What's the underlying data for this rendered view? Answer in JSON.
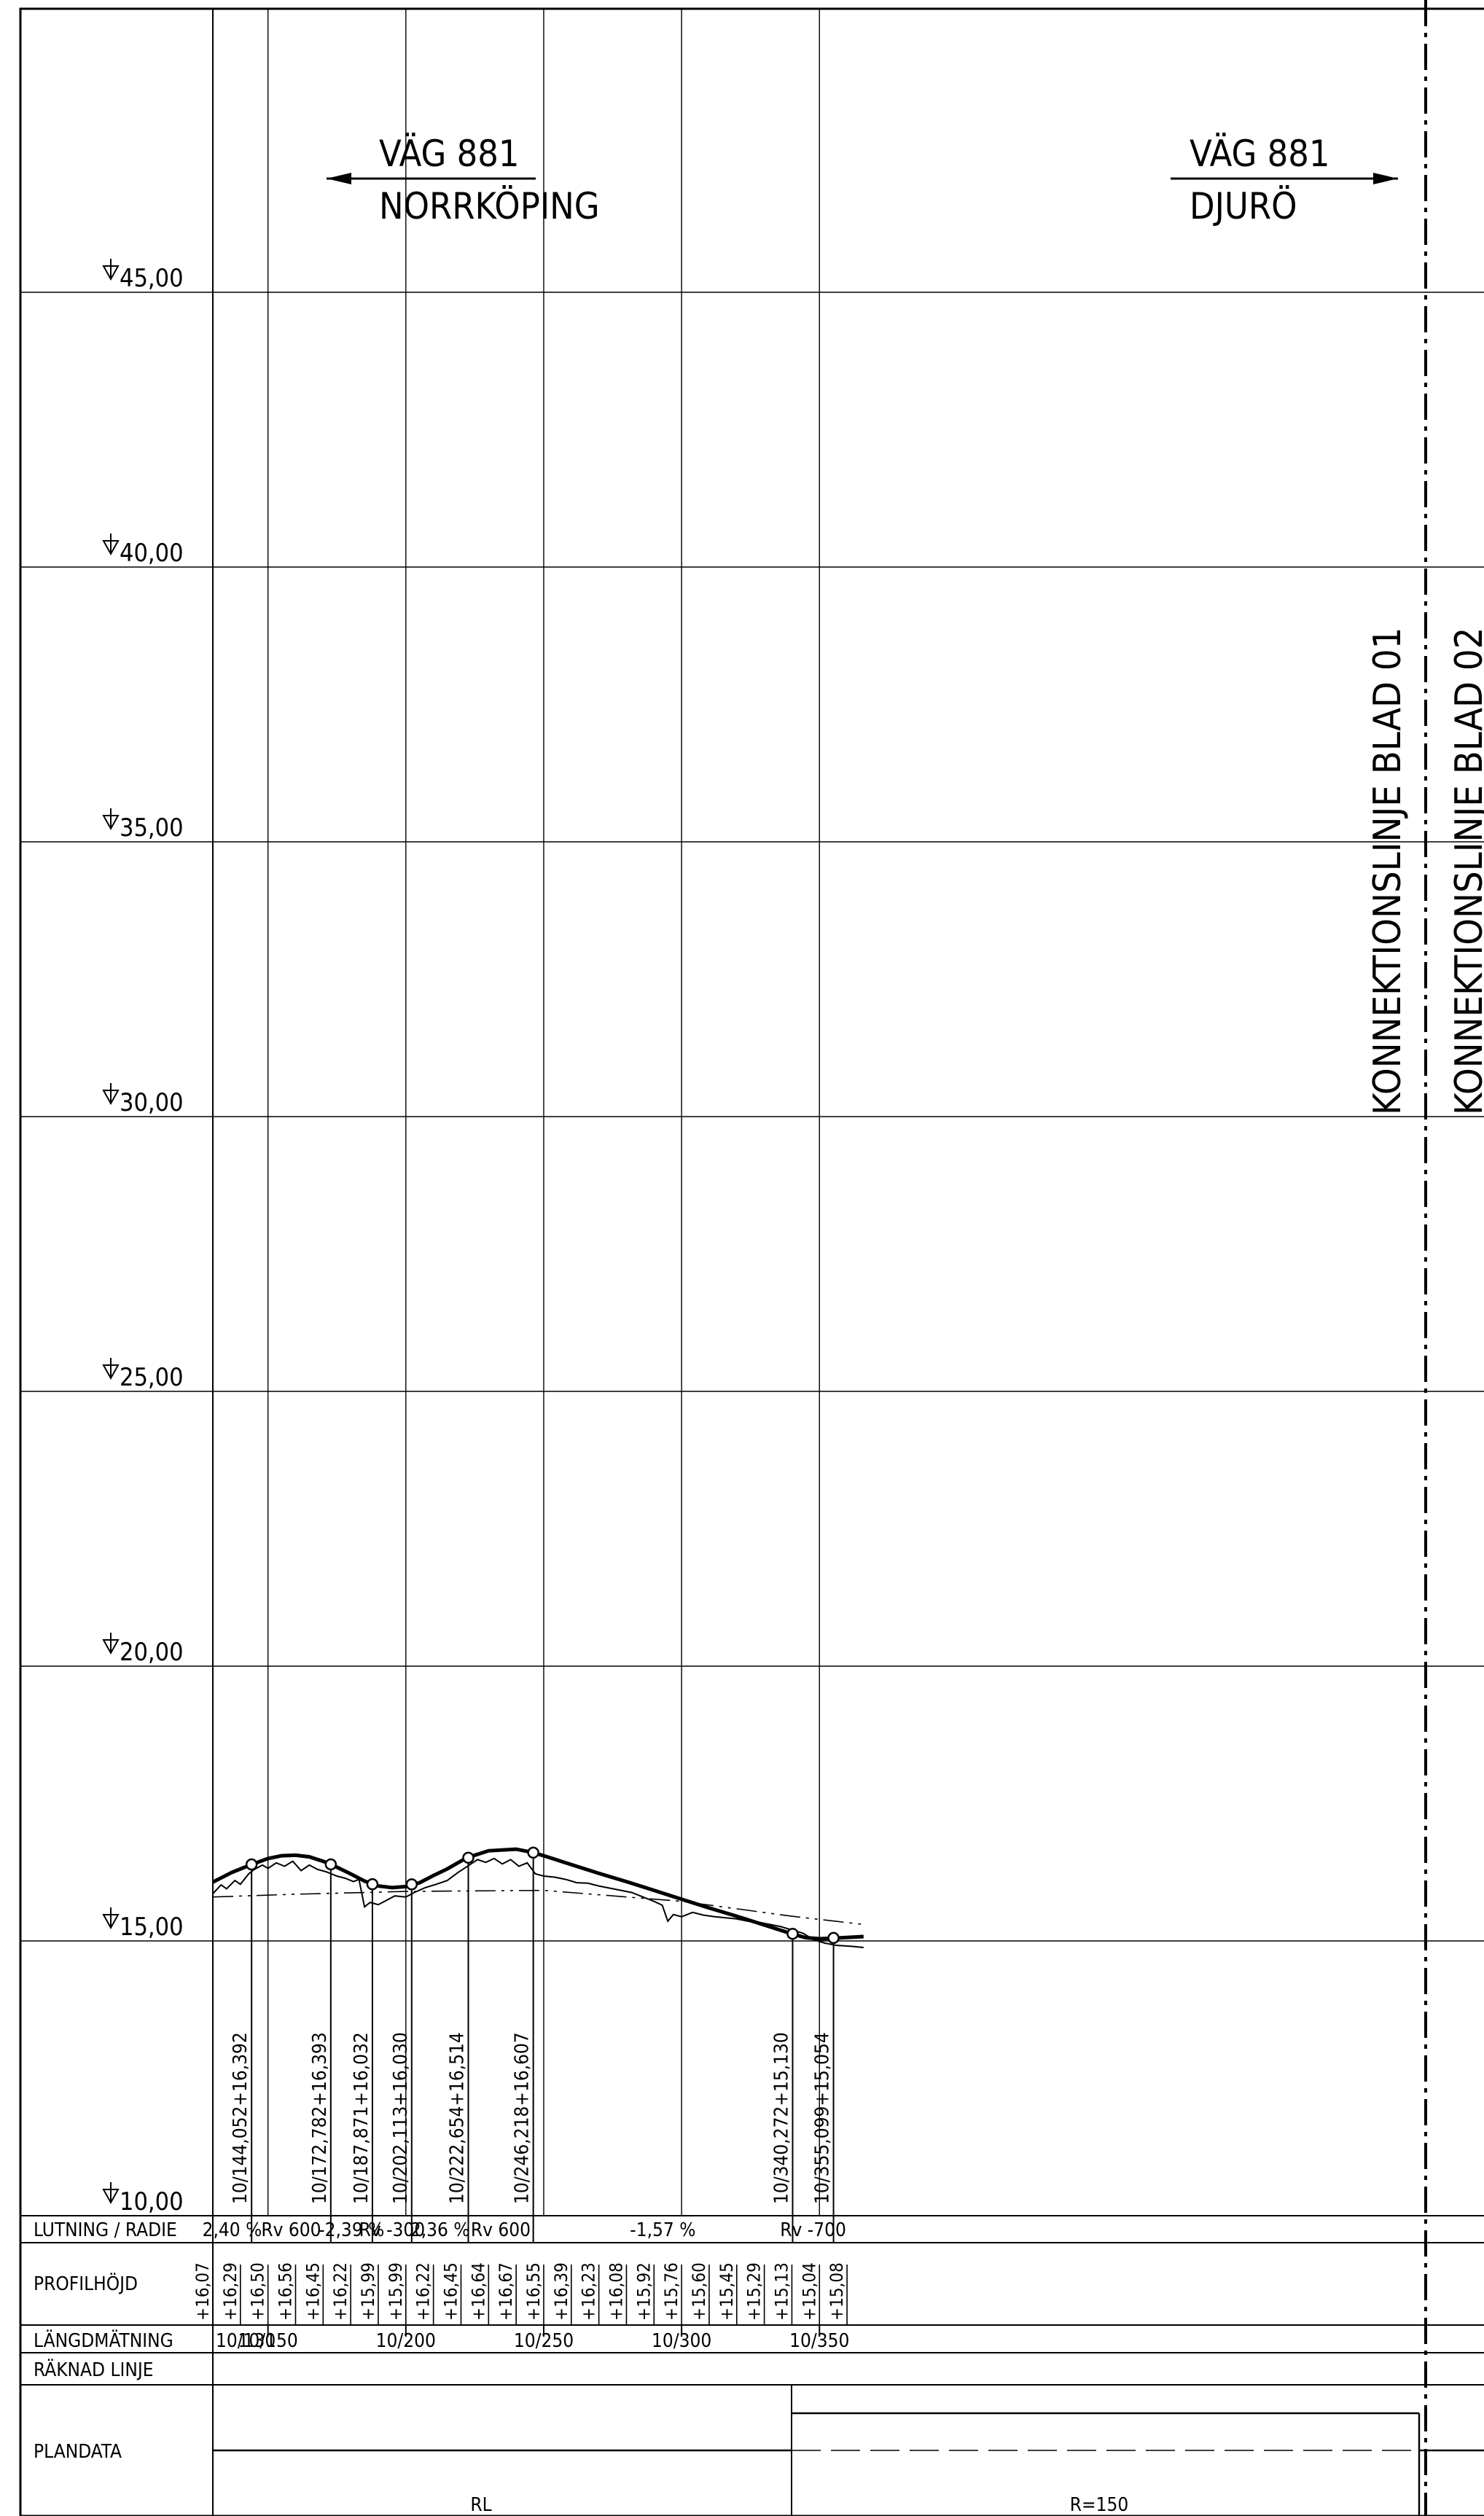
{
  "drawing": {
    "elevation_labels": [
      "45,00",
      "40,00",
      "35,00",
      "30,00",
      "25,00",
      "20,00",
      "15,00",
      "10,00"
    ],
    "direction_labels": [
      {
        "road": "VÄG 881",
        "destination": "NORRKÖPING",
        "arrow": "left"
      },
      {
        "road": "VÄG 881",
        "destination": "DJURÖ",
        "arrow": "right"
      }
    ],
    "connection_lines": [
      "KONNEKTIONSLINJE BLAD 01",
      "KONNEKTIONSLINJE BLAD 02"
    ],
    "vertical_point_labels": [
      "10/144,052+16,392",
      "10/172,782+16,393",
      "10/187,871+16,032",
      "10/202,113+16,030",
      "10/222,654+16,514",
      "10/246,218+16,607",
      "10/340,272+15,130",
      "10/355,099+15,054"
    ],
    "bands": {
      "lutning_radie": {
        "label": "LUTNING / RADIE",
        "values": [
          "2,40 %",
          "Rv 600",
          "-2,39 %",
          "Rv -300",
          "2,36 %",
          "Rv 600",
          "-1,57 %",
          "Rv -700"
        ]
      },
      "profilhojd": {
        "label": "PROFILHÖJD",
        "values": [
          "+16,07",
          "+16,29",
          "+16,50",
          "+16,56",
          "+16,45",
          "+16,22",
          "+15,99",
          "+15,99",
          "+16,22",
          "+16,45",
          "+16,64",
          "+16,67",
          "+16,55",
          "+16,39",
          "+16,23",
          "+16,08",
          "+15,92",
          "+15,76",
          "+15,60",
          "+15,45",
          "+15,29",
          "+15,13",
          "+15,04",
          "+15,08"
        ]
      },
      "langdmatning": {
        "label": "LÄNGDMÄTNING",
        "values": [
          "10/130",
          "10/150",
          "10/200",
          "10/250",
          "10/300",
          "10/350"
        ]
      },
      "raknad_linje": {
        "label": "RÄKNAD LINJE"
      },
      "plandata": {
        "label": "PLANDATA",
        "values": [
          "RL",
          "R=150"
        ]
      }
    }
  }
}
